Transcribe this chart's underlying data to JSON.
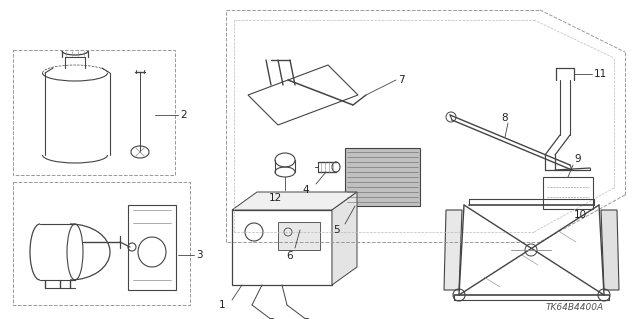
{
  "bg_color": "#ffffff",
  "diagram_code": "TK64B4400A",
  "fig_width": 6.4,
  "fig_height": 3.19,
  "dpi": 100,
  "lc": "#444444",
  "lc2": "#888888",
  "lw": 0.8,
  "fs": 7.5
}
